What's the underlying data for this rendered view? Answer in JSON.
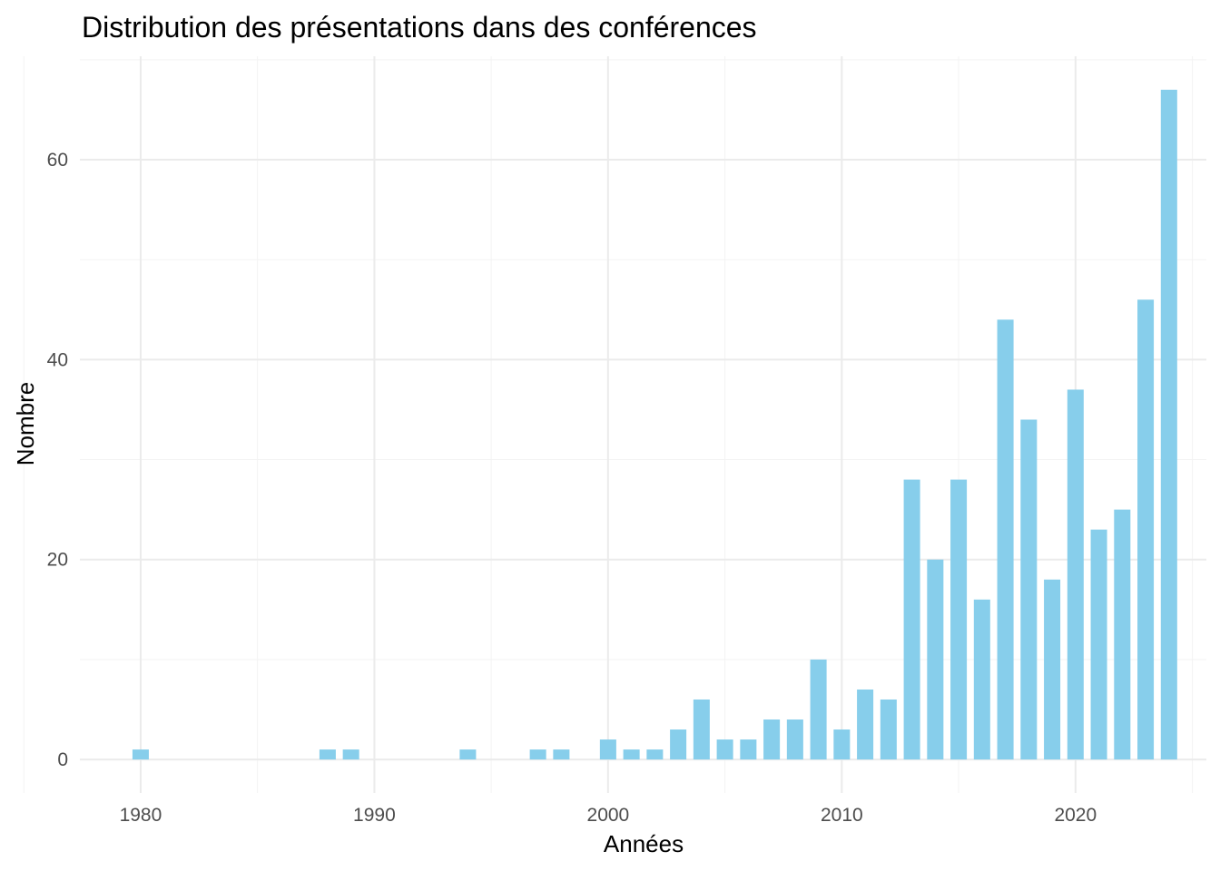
{
  "chart_data": {
    "type": "bar",
    "title": "Distribution des présentations dans des conférences",
    "xlabel": "Années",
    "ylabel": "Nombre",
    "x": [
      1980,
      1988,
      1989,
      1994,
      1997,
      1998,
      2000,
      2001,
      2002,
      2003,
      2004,
      2005,
      2006,
      2007,
      2008,
      2009,
      2010,
      2011,
      2012,
      2013,
      2014,
      2015,
      2016,
      2017,
      2018,
      2019,
      2020,
      2021,
      2022,
      2023,
      2024
    ],
    "values": [
      1,
      1,
      1,
      1,
      1,
      1,
      2,
      1,
      1,
      3,
      6,
      2,
      2,
      4,
      4,
      10,
      3,
      7,
      6,
      28,
      20,
      28,
      16,
      44,
      34,
      18,
      37,
      23,
      25,
      46,
      67
    ],
    "xlim": [
      1977.4,
      1925.6
    ],
    "ylim": [
      -3.35,
      70.35
    ],
    "x_ticks": [
      1980,
      1990,
      2000,
      2010,
      2020
    ],
    "x_tick_labels": [
      "1980",
      "1990",
      "2000",
      "2010",
      "2020"
    ],
    "y_ticks": [
      0,
      20,
      40,
      60
    ],
    "y_tick_labels": [
      "0",
      "20",
      "40",
      "60"
    ],
    "bar_color": "#87CEEB",
    "grid": true,
    "legend": "none"
  }
}
